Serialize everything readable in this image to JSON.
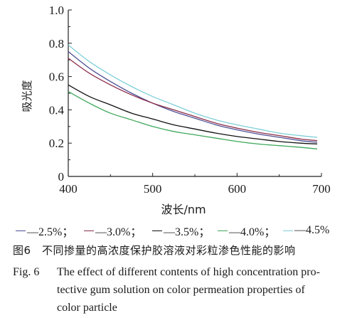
{
  "chart_data": {
    "type": "line",
    "xlabel": "波长/nm",
    "ylabel": "吸光度",
    "xlim": [
      400,
      700
    ],
    "ylim": [
      0,
      1.0
    ],
    "x_ticks": [
      400,
      500,
      600,
      700
    ],
    "x_tick_labels": [
      "400",
      "500",
      "600",
      "700"
    ],
    "y_ticks": [
      0,
      0.2,
      0.4,
      0.6,
      0.8,
      1.0
    ],
    "y_tick_labels": [
      "0",
      "0.2",
      "0.4",
      "0.6",
      "0.8",
      "1.0"
    ],
    "grid": false,
    "legend_position": "bottom",
    "x": [
      400,
      425,
      450,
      475,
      500,
      525,
      550,
      575,
      600,
      625,
      650,
      675,
      695
    ],
    "series": [
      {
        "name": "2.5%",
        "color": "#4d4f93",
        "values": [
          0.75,
          0.65,
          0.57,
          0.5,
          0.44,
          0.39,
          0.35,
          0.31,
          0.28,
          0.255,
          0.235,
          0.215,
          0.205
        ]
      },
      {
        "name": "3.0%",
        "color": "#8a2d4a",
        "values": [
          0.71,
          0.62,
          0.55,
          0.49,
          0.44,
          0.4,
          0.36,
          0.32,
          0.29,
          0.265,
          0.245,
          0.225,
          0.215
        ]
      },
      {
        "name": "3.5%",
        "color": "#111111",
        "values": [
          0.55,
          0.48,
          0.43,
          0.38,
          0.345,
          0.31,
          0.285,
          0.26,
          0.24,
          0.225,
          0.21,
          0.2,
          0.195
        ]
      },
      {
        "name": "4.0%",
        "color": "#3ea85a",
        "values": [
          0.51,
          0.44,
          0.38,
          0.34,
          0.3,
          0.27,
          0.25,
          0.23,
          0.21,
          0.195,
          0.185,
          0.175,
          0.165
        ]
      },
      {
        "name": "4.5%",
        "color": "#7fcfd8",
        "values": [
          0.79,
          0.69,
          0.61,
          0.54,
          0.48,
          0.43,
          0.38,
          0.34,
          0.31,
          0.285,
          0.26,
          0.245,
          0.235
        ]
      }
    ]
  },
  "legend_separator": "；",
  "caption": {
    "cn": "图6　不同掺量的高浓度保护胶溶液对彩粒渗色性能的影响",
    "en_label": "Fig. 6",
    "en_lines": [
      "The effect of different contents of high concentration pro-",
      "tective gum solution on color permeation properties of",
      "color particle"
    ]
  }
}
